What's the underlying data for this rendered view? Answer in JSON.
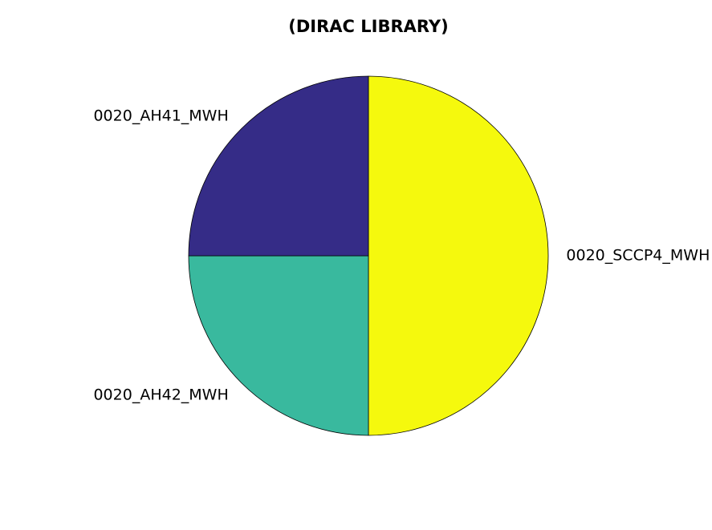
{
  "chart_data": {
    "type": "pie",
    "title": "(DIRAC LIBRARY)",
    "start": "12 o'clock",
    "direction": "clockwise",
    "slices": [
      {
        "label": "0020_SCCP4_MWH",
        "value": 50,
        "color": "#f5f90d"
      },
      {
        "label": "0020_AH42_MWH",
        "value": 25,
        "color": "#39b99e"
      },
      {
        "label": "0020_AH41_MWH",
        "value": 25,
        "color": "#352c87"
      }
    ]
  }
}
